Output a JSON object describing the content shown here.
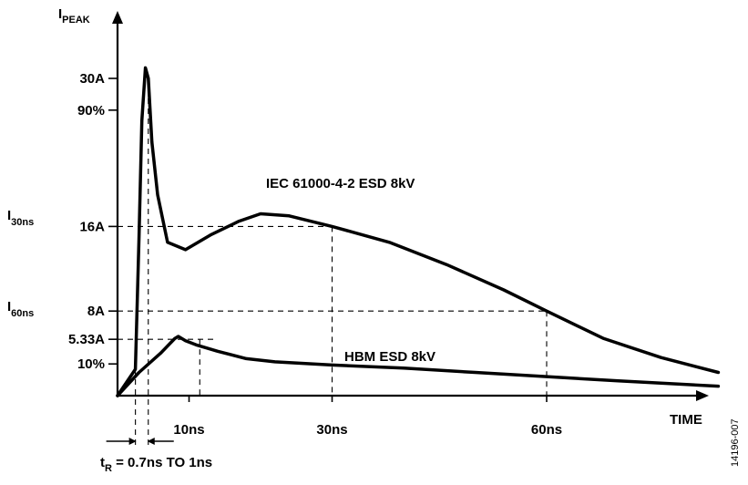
{
  "chart_data": {
    "type": "line",
    "y_axis_label": {
      "main": "I",
      "sub": "PEAK"
    },
    "x_axis_label": "TIME",
    "y_ticks": [
      {
        "label": "30A",
        "value": 30
      },
      {
        "label": "90%",
        "value": 27
      },
      {
        "label": "16A",
        "value": 16
      },
      {
        "label": "8A",
        "value": 8
      },
      {
        "label": "5.33A",
        "value": 5.33
      },
      {
        "label": "10%",
        "value": 3
      }
    ],
    "y_side_labels": [
      {
        "main": "I",
        "sub": "30ns",
        "value": 16
      },
      {
        "main": "I",
        "sub": "60ns",
        "value": 8
      }
    ],
    "x_ticks": [
      {
        "label": "10ns",
        "value": 10
      },
      {
        "label": "30ns",
        "value": 30
      },
      {
        "label": "60ns",
        "value": 60
      }
    ],
    "rise_time": {
      "main": "t",
      "sub": "R",
      "text": " = 0.7ns TO 1ns"
    },
    "series": [
      {
        "name": "IEC 61000-4-2 ESD 8kV",
        "points": [
          [
            0,
            0
          ],
          [
            2.5,
            2.5
          ],
          [
            3.0,
            15
          ],
          [
            3.4,
            26
          ],
          [
            3.9,
            31
          ],
          [
            4.3,
            30
          ],
          [
            4.8,
            24
          ],
          [
            5.6,
            19
          ],
          [
            7.0,
            14.5
          ],
          [
            9.5,
            13.8
          ],
          [
            13,
            15.2
          ],
          [
            17,
            16.5
          ],
          [
            20,
            17.2
          ],
          [
            24,
            17.0
          ],
          [
            30,
            16.0
          ],
          [
            38,
            14.5
          ],
          [
            46,
            12.4
          ],
          [
            54,
            10.0
          ],
          [
            60,
            8.0
          ],
          [
            68,
            5.4
          ],
          [
            76,
            3.6
          ],
          [
            84,
            2.2
          ]
        ]
      },
      {
        "name": "HBM ESD 8kV",
        "points": [
          [
            0,
            0
          ],
          [
            3,
            2.2
          ],
          [
            6,
            4.0
          ],
          [
            8,
            5.4
          ],
          [
            8.5,
            5.6
          ],
          [
            9.5,
            5.2
          ],
          [
            11,
            4.8
          ],
          [
            14,
            4.2
          ],
          [
            18,
            3.5
          ],
          [
            22,
            3.2
          ],
          [
            30,
            2.9
          ],
          [
            40,
            2.6
          ],
          [
            50,
            2.2
          ],
          [
            60,
            1.8
          ],
          [
            70,
            1.4
          ],
          [
            84,
            0.9
          ]
        ]
      }
    ],
    "footnote": "14196-007"
  }
}
